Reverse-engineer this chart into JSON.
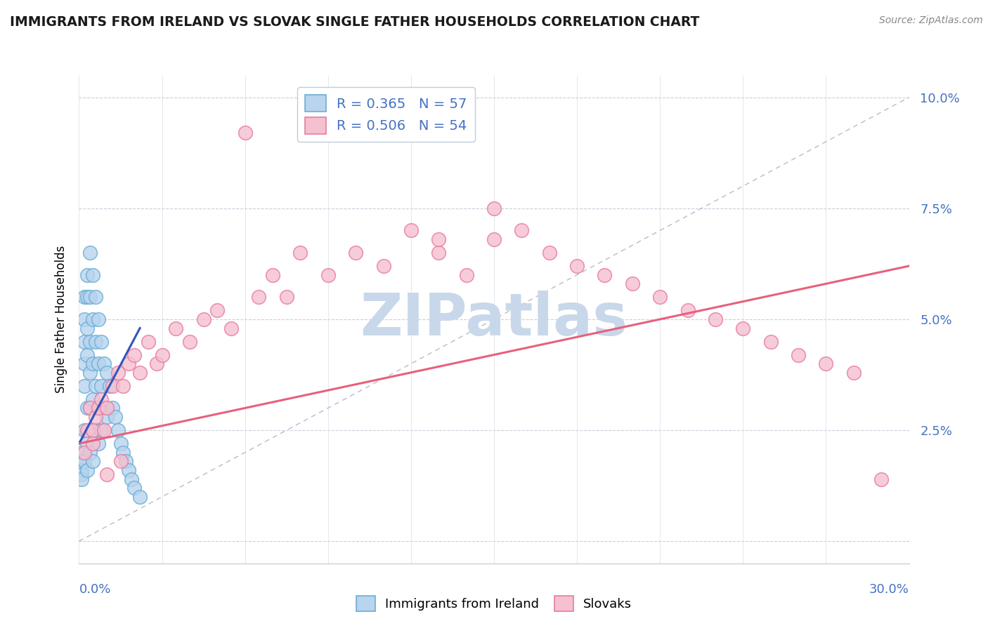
{
  "title": "IMMIGRANTS FROM IRELAND VS SLOVAK SINGLE FATHER HOUSEHOLDS CORRELATION CHART",
  "source": "Source: ZipAtlas.com",
  "ylabel": "Single Father Households",
  "xlim": [
    0.0,
    0.3
  ],
  "ylim": [
    -0.005,
    0.105
  ],
  "ytick_vals": [
    0.0,
    0.025,
    0.05,
    0.075,
    0.1
  ],
  "ytick_labels": [
    "",
    "2.5%",
    "5.0%",
    "7.5%",
    "10.0%"
  ],
  "ireland_color_edge": "#6baed6",
  "ireland_color_fill": "#b8d4ee",
  "slovak_color_edge": "#e87ca0",
  "slovak_color_fill": "#f5c0d0",
  "trend_ireland_color": "#3355bb",
  "trend_slovak_color": "#e8607a",
  "watermark": "ZIPatlas",
  "watermark_color": "#c8d8ea",
  "background_color": "#ffffff",
  "grid_color": "#c8d0da",
  "reference_line_color": "#b8bcc8",
  "ireland_R": 0.365,
  "ireland_N": 57,
  "slovak_R": 0.506,
  "slovak_N": 54,
  "ireland_x": [
    0.001,
    0.001,
    0.001,
    0.001,
    0.001,
    0.002,
    0.002,
    0.002,
    0.002,
    0.002,
    0.002,
    0.002,
    0.003,
    0.003,
    0.003,
    0.003,
    0.003,
    0.003,
    0.003,
    0.004,
    0.004,
    0.004,
    0.004,
    0.004,
    0.004,
    0.005,
    0.005,
    0.005,
    0.005,
    0.005,
    0.005,
    0.006,
    0.006,
    0.006,
    0.006,
    0.007,
    0.007,
    0.007,
    0.007,
    0.008,
    0.008,
    0.008,
    0.009,
    0.009,
    0.01,
    0.01,
    0.011,
    0.012,
    0.013,
    0.014,
    0.015,
    0.016,
    0.017,
    0.018,
    0.019,
    0.02,
    0.022
  ],
  "ireland_y": [
    0.02,
    0.018,
    0.016,
    0.015,
    0.014,
    0.055,
    0.05,
    0.045,
    0.04,
    0.035,
    0.025,
    0.018,
    0.06,
    0.055,
    0.048,
    0.042,
    0.03,
    0.022,
    0.016,
    0.065,
    0.055,
    0.045,
    0.038,
    0.03,
    0.02,
    0.06,
    0.05,
    0.04,
    0.032,
    0.025,
    0.018,
    0.055,
    0.045,
    0.035,
    0.025,
    0.05,
    0.04,
    0.03,
    0.022,
    0.045,
    0.035,
    0.025,
    0.04,
    0.03,
    0.038,
    0.028,
    0.035,
    0.03,
    0.028,
    0.025,
    0.022,
    0.02,
    0.018,
    0.016,
    0.014,
    0.012,
    0.01
  ],
  "slovak_x": [
    0.002,
    0.003,
    0.004,
    0.005,
    0.006,
    0.007,
    0.008,
    0.009,
    0.01,
    0.012,
    0.014,
    0.016,
    0.018,
    0.02,
    0.022,
    0.025,
    0.028,
    0.03,
    0.035,
    0.04,
    0.045,
    0.05,
    0.055,
    0.06,
    0.065,
    0.07,
    0.075,
    0.08,
    0.09,
    0.1,
    0.11,
    0.12,
    0.13,
    0.14,
    0.15,
    0.16,
    0.17,
    0.18,
    0.19,
    0.2,
    0.21,
    0.22,
    0.23,
    0.24,
    0.25,
    0.26,
    0.27,
    0.28,
    0.15,
    0.13,
    0.005,
    0.01,
    0.015,
    0.29
  ],
  "slovak_y": [
    0.02,
    0.025,
    0.03,
    0.025,
    0.028,
    0.03,
    0.032,
    0.025,
    0.03,
    0.035,
    0.038,
    0.035,
    0.04,
    0.042,
    0.038,
    0.045,
    0.04,
    0.042,
    0.048,
    0.045,
    0.05,
    0.052,
    0.048,
    0.092,
    0.055,
    0.06,
    0.055,
    0.065,
    0.06,
    0.065,
    0.062,
    0.07,
    0.065,
    0.06,
    0.068,
    0.07,
    0.065,
    0.062,
    0.06,
    0.058,
    0.055,
    0.052,
    0.05,
    0.048,
    0.045,
    0.042,
    0.04,
    0.038,
    0.075,
    0.068,
    0.022,
    0.015,
    0.018,
    0.014
  ],
  "ireland_trend_x0": 0.0,
  "ireland_trend_x1": 0.022,
  "ireland_trend_y0": 0.022,
  "ireland_trend_y1": 0.048,
  "slovak_trend_x0": 0.0,
  "slovak_trend_x1": 0.3,
  "slovak_trend_y0": 0.022,
  "slovak_trend_y1": 0.062
}
